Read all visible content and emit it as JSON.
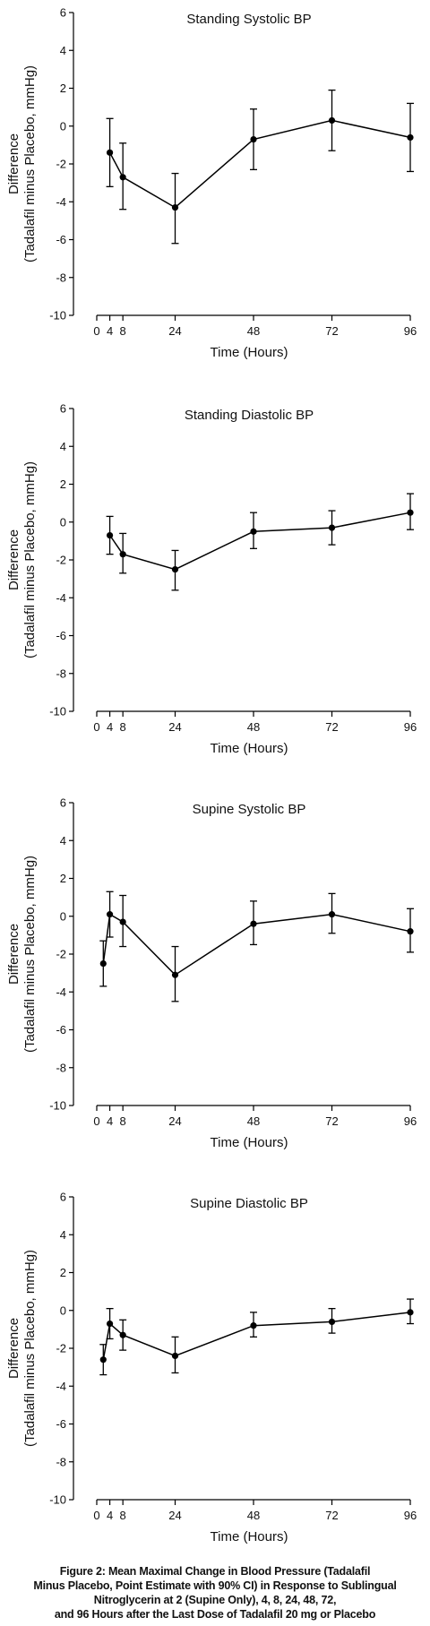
{
  "chart_data": [
    {
      "type": "line",
      "title": "Standing Systolic BP",
      "xlabel": "Time (Hours)",
      "ylabel": [
        "Difference",
        "(Tadalafil minus Placebo, mmHg)"
      ],
      "ylim": [
        -10,
        6
      ],
      "yticks": [
        6,
        4,
        2,
        0,
        -2,
        -4,
        -6,
        -8,
        -10
      ],
      "xticks": [
        0,
        4,
        8,
        24,
        48,
        72,
        96
      ],
      "x": [
        4,
        8,
        24,
        48,
        72,
        96
      ],
      "y": [
        -1.4,
        -2.7,
        -4.3,
        -0.7,
        0.3,
        -0.6
      ],
      "ci_lower": [
        -3.2,
        -4.4,
        -6.2,
        -2.3,
        -1.3,
        -2.4
      ],
      "ci_upper": [
        0.4,
        -0.9,
        -2.5,
        0.9,
        1.9,
        1.2
      ]
    },
    {
      "type": "line",
      "title": "Standing Diastolic BP",
      "xlabel": "Time (Hours)",
      "ylabel": [
        "Difference",
        "(Tadalafil minus Placebo, mmHg)"
      ],
      "ylim": [
        -10,
        6
      ],
      "yticks": [
        6,
        4,
        2,
        0,
        -2,
        -4,
        -6,
        -8,
        -10
      ],
      "xticks": [
        0,
        4,
        8,
        24,
        48,
        72,
        96
      ],
      "x": [
        4,
        8,
        24,
        48,
        72,
        96
      ],
      "y": [
        -0.7,
        -1.7,
        -2.5,
        -0.5,
        -0.3,
        0.5
      ],
      "ci_lower": [
        -1.7,
        -2.7,
        -3.6,
        -1.4,
        -1.2,
        -0.4
      ],
      "ci_upper": [
        0.3,
        -0.6,
        -1.5,
        0.5,
        0.6,
        1.5
      ]
    },
    {
      "type": "line",
      "title": "Supine Systolic BP",
      "xlabel": "Time (Hours)",
      "ylabel": [
        "Difference",
        "(Tadalafil minus Placebo, mmHg)"
      ],
      "ylim": [
        -10,
        6
      ],
      "yticks": [
        6,
        4,
        2,
        0,
        -2,
        -4,
        -6,
        -8,
        -10
      ],
      "xticks": [
        0,
        4,
        8,
        24,
        48,
        72,
        96
      ],
      "x": [
        2,
        4,
        8,
        24,
        48,
        72,
        96
      ],
      "y": [
        -2.5,
        0.1,
        -0.3,
        -3.1,
        -0.4,
        0.1,
        -0.8
      ],
      "ci_lower": [
        -3.7,
        -1.1,
        -1.6,
        -4.5,
        -1.5,
        -0.9,
        -1.9
      ],
      "ci_upper": [
        -1.3,
        1.3,
        1.1,
        -1.6,
        0.8,
        1.2,
        0.4
      ]
    },
    {
      "type": "line",
      "title": "Supine Diastolic BP",
      "xlabel": "Time (Hours)",
      "ylabel": [
        "Difference",
        "(Tadalafil minus Placebo, mmHg)"
      ],
      "ylim": [
        -10,
        6
      ],
      "yticks": [
        6,
        4,
        2,
        0,
        -2,
        -4,
        -6,
        -8,
        -10
      ],
      "xticks": [
        0,
        4,
        8,
        24,
        48,
        72,
        96
      ],
      "x": [
        2,
        4,
        8,
        24,
        48,
        72,
        96
      ],
      "y": [
        -2.6,
        -0.7,
        -1.3,
        -2.4,
        -0.8,
        -0.6,
        -0.1
      ],
      "ci_lower": [
        -3.4,
        -1.5,
        -2.1,
        -3.3,
        -1.4,
        -1.2,
        -0.7
      ],
      "ci_upper": [
        -1.8,
        0.1,
        -0.5,
        -1.4,
        -0.1,
        0.1,
        0.6
      ]
    }
  ],
  "caption": {
    "lines": [
      "Figure 2: Mean Maximal Change in Blood Pressure (Tadalafil",
      "Minus Placebo, Point Estimate with 90% CI) in Response to Sublingual",
      "Nitroglycerin at 2 (Supine Only), 4, 8, 24, 48, 72,",
      "and 96 Hours after the Last Dose of Tadalafil 20 mg or Placebo"
    ]
  }
}
